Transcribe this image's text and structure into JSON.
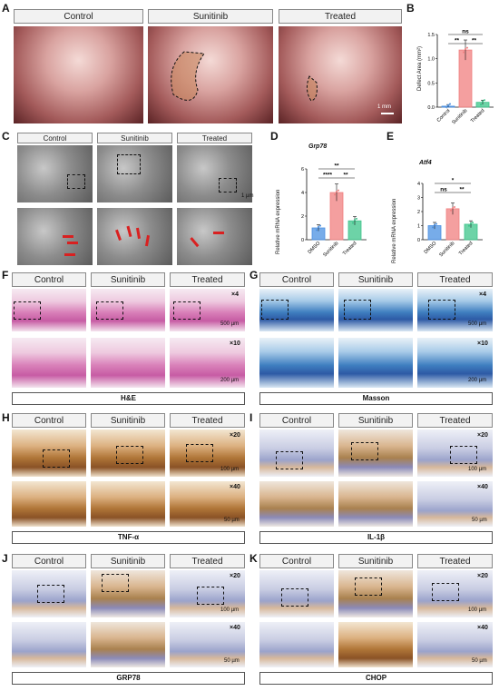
{
  "panels": {
    "A": "A",
    "B": "B",
    "C": "C",
    "D": "D",
    "E": "E",
    "F": "F",
    "G": "G",
    "H": "H",
    "I": "I",
    "J": "J",
    "K": "K"
  },
  "groups": {
    "control": "Control",
    "sunitinib": "Sunitinib",
    "treated": "Treated"
  },
  "stains": {
    "he": "H&E",
    "masson": "Masson",
    "tnf": "TNF-α",
    "il1b": "IL-1β",
    "grp78": "GRP78",
    "chop": "CHOP"
  },
  "magnifications": {
    "x4": "×4",
    "x10": "×10",
    "x20": "×20",
    "x40": "×40"
  },
  "scale_bars": {
    "a": "1 mm",
    "c": "1 µm",
    "fg_low": "500 µm",
    "fg_high": "200 µm",
    "ih_low": "100 µm",
    "ih_high": "50 µm"
  },
  "colors": {
    "dmso": "#4a90e2",
    "sunitinib": "#f07f7f",
    "treated": "#3cc48a",
    "control_b": "#4a90e2"
  },
  "chart_data": [
    {
      "type": "bar",
      "panel": "B",
      "title": "",
      "categories": [
        "Control",
        "Sunitinib",
        "Treated"
      ],
      "values": [
        0.02,
        1.18,
        0.1
      ],
      "ylabel": "Defect Area (mm²)",
      "ylim": [
        0,
        1.5
      ],
      "yticks": [
        "0.0",
        "0.5",
        "1.0",
        "1.5"
      ],
      "significance": [
        "**",
        "**",
        "ns"
      ]
    },
    {
      "type": "bar",
      "panel": "D",
      "title": "Grp78",
      "categories": [
        "DMSO",
        "Sunitinib",
        "Treated"
      ],
      "values": [
        1.0,
        4.0,
        1.6
      ],
      "ylabel": "Relative mRNA expression",
      "ylim": [
        0,
        6
      ],
      "yticks": [
        "0",
        "2",
        "4",
        "6"
      ],
      "significance": [
        "****",
        "**",
        "**"
      ]
    },
    {
      "type": "bar",
      "panel": "E",
      "title": "Atf4",
      "categories": [
        "DMSO",
        "Sunitinib",
        "Treated"
      ],
      "values": [
        1.0,
        2.2,
        1.1
      ],
      "ylabel": "Relative mRNA expression",
      "ylim": [
        0,
        4
      ],
      "yticks": [
        "0",
        "1",
        "2",
        "3",
        "4"
      ],
      "significance": [
        "ns",
        "**",
        "*"
      ]
    }
  ]
}
